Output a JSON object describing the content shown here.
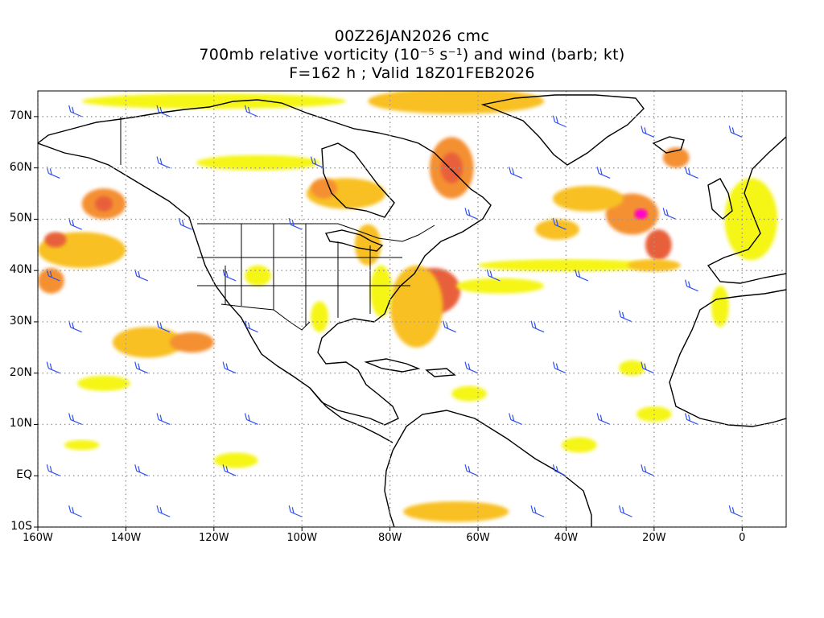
{
  "title": {
    "line1": "00Z26JAN2026 cmc",
    "line2": "700mb relative vorticity (10⁻⁵ s⁻¹) and wind (barb; kt)",
    "line3": "F=162 h ; Valid 18Z01FEB2026"
  },
  "map": {
    "projection": "cylindrical",
    "lon_range": [
      -160,
      10
    ],
    "lat_range": [
      -10,
      75
    ],
    "lat_ticks": [
      {
        "value": 70,
        "label": "70N"
      },
      {
        "value": 60,
        "label": "60N"
      },
      {
        "value": 50,
        "label": "50N"
      },
      {
        "value": 40,
        "label": "40N"
      },
      {
        "value": 30,
        "label": "30N"
      },
      {
        "value": 20,
        "label": "20N"
      },
      {
        "value": 10,
        "label": "10N"
      },
      {
        "value": 0,
        "label": "EQ"
      },
      {
        "value": -10,
        "label": "10S"
      }
    ],
    "lon_ticks": [
      {
        "value": -160,
        "label": "160W"
      },
      {
        "value": -140,
        "label": "140W"
      },
      {
        "value": -120,
        "label": "120W"
      },
      {
        "value": -100,
        "label": "100W"
      },
      {
        "value": -80,
        "label": "80W"
      },
      {
        "value": -60,
        "label": "60W"
      },
      {
        "value": -40,
        "label": "40W"
      },
      {
        "value": -20,
        "label": "20W"
      },
      {
        "value": 0,
        "label": "0"
      }
    ],
    "grid": "dotted",
    "colors": {
      "level1": "#f5f515",
      "level2": "#f8c020",
      "level3": "#f49030",
      "level4": "#e8603a",
      "level5": "#ff00cc",
      "barb": "#3050f0",
      "coast": "#000000",
      "grid": "#999999"
    },
    "vorticity_features": [
      {
        "lon": -65,
        "lat": 73,
        "rx": 20,
        "ry": 2.5,
        "level": 2
      },
      {
        "lon": -120,
        "lat": 73,
        "rx": 30,
        "ry": 1.5,
        "level": 1
      },
      {
        "lon": -66,
        "lat": 60,
        "rx": 5,
        "ry": 6,
        "level": 3
      },
      {
        "lon": -66,
        "lat": 60,
        "rx": 2.5,
        "ry": 3,
        "level": 4
      },
      {
        "lon": -90,
        "lat": 55,
        "rx": 9,
        "ry": 3,
        "level": 2
      },
      {
        "lon": -95,
        "lat": 56,
        "rx": 3,
        "ry": 2,
        "level": 3
      },
      {
        "lon": -110,
        "lat": 61,
        "rx": 14,
        "ry": 1.5,
        "level": 1
      },
      {
        "lon": -145,
        "lat": 53,
        "rx": 5,
        "ry": 3,
        "level": 3
      },
      {
        "lon": -145,
        "lat": 53,
        "rx": 2,
        "ry": 1.5,
        "level": 4
      },
      {
        "lon": -150,
        "lat": 44,
        "rx": 10,
        "ry": 3.5,
        "level": 2
      },
      {
        "lon": -156,
        "lat": 46,
        "rx": 2.5,
        "ry": 1.5,
        "level": 4
      },
      {
        "lon": -157,
        "lat": 38,
        "rx": 3,
        "ry": 2.5,
        "level": 3
      },
      {
        "lon": -135,
        "lat": 26,
        "rx": 8,
        "ry": 3,
        "level": 2
      },
      {
        "lon": -125,
        "lat": 26,
        "rx": 5,
        "ry": 2,
        "level": 3
      },
      {
        "lon": -70,
        "lat": 36,
        "rx": 6,
        "ry": 4.5,
        "level": 4
      },
      {
        "lon": -72,
        "lat": 35,
        "rx": 1.5,
        "ry": 1.2,
        "level": 5
      },
      {
        "lon": -74,
        "lat": 33,
        "rx": 6,
        "ry": 8,
        "level": 2
      },
      {
        "lon": -55,
        "lat": 37,
        "rx": 10,
        "ry": 1.5,
        "level": 1
      },
      {
        "lon": -25,
        "lat": 51,
        "rx": 6,
        "ry": 4,
        "level": 3
      },
      {
        "lon": -23,
        "lat": 51,
        "rx": 1.5,
        "ry": 1,
        "level": 5
      },
      {
        "lon": -19,
        "lat": 45,
        "rx": 3,
        "ry": 3,
        "level": 4
      },
      {
        "lon": -35,
        "lat": 54,
        "rx": 8,
        "ry": 2.5,
        "level": 2
      },
      {
        "lon": -42,
        "lat": 48,
        "rx": 5,
        "ry": 2,
        "level": 2
      },
      {
        "lon": -15,
        "lat": 62,
        "rx": 3,
        "ry": 2,
        "level": 3
      },
      {
        "lon": -40,
        "lat": 41,
        "rx": 20,
        "ry": 1.2,
        "level": 1
      },
      {
        "lon": -20,
        "lat": 41,
        "rx": 6,
        "ry": 1.2,
        "level": 2
      },
      {
        "lon": 2,
        "lat": 50,
        "rx": 6,
        "ry": 8,
        "level": 1
      },
      {
        "lon": -85,
        "lat": 45,
        "rx": 3,
        "ry": 4,
        "level": 2
      },
      {
        "lon": -82,
        "lat": 36,
        "rx": 2.5,
        "ry": 5,
        "level": 1
      },
      {
        "lon": -65,
        "lat": -7,
        "rx": 12,
        "ry": 2,
        "level": 2
      },
      {
        "lon": -145,
        "lat": 18,
        "rx": 6,
        "ry": 1.5,
        "level": 1
      },
      {
        "lon": -110,
        "lat": 39,
        "rx": 3,
        "ry": 2,
        "level": 1
      },
      {
        "lon": -96,
        "lat": 31,
        "rx": 2,
        "ry": 3,
        "level": 1
      },
      {
        "lon": -25,
        "lat": 21,
        "rx": 3,
        "ry": 1.5,
        "level": 1
      },
      {
        "lon": -62,
        "lat": 16,
        "rx": 4,
        "ry": 1.5,
        "level": 1
      },
      {
        "lon": -37,
        "lat": 6,
        "rx": 4,
        "ry": 1.5,
        "level": 1
      },
      {
        "lon": -150,
        "lat": 6,
        "rx": 4,
        "ry": 1,
        "level": 1
      },
      {
        "lon": -115,
        "lat": 3,
        "rx": 5,
        "ry": 1.5,
        "level": 1
      },
      {
        "lon": -20,
        "lat": 12,
        "rx": 4,
        "ry": 1.5,
        "level": 1
      },
      {
        "lon": -5,
        "lat": 33,
        "rx": 2,
        "ry": 4,
        "level": 1
      }
    ],
    "wind_barbs": [
      {
        "lon": -150,
        "lat": 70
      },
      {
        "lon": -130,
        "lat": 70
      },
      {
        "lon": -110,
        "lat": 70
      },
      {
        "lon": -40,
        "lat": 68
      },
      {
        "lon": -20,
        "lat": 66
      },
      {
        "lon": 0,
        "lat": 66
      },
      {
        "lon": -155,
        "lat": 58
      },
      {
        "lon": -130,
        "lat": 60
      },
      {
        "lon": -95,
        "lat": 60
      },
      {
        "lon": -50,
        "lat": 58
      },
      {
        "lon": -30,
        "lat": 58
      },
      {
        "lon": -10,
        "lat": 58
      },
      {
        "lon": -150,
        "lat": 48
      },
      {
        "lon": -125,
        "lat": 48
      },
      {
        "lon": -100,
        "lat": 48
      },
      {
        "lon": -60,
        "lat": 50
      },
      {
        "lon": -40,
        "lat": 48
      },
      {
        "lon": -15,
        "lat": 50
      },
      {
        "lon": -155,
        "lat": 38
      },
      {
        "lon": -135,
        "lat": 38
      },
      {
        "lon": -115,
        "lat": 38
      },
      {
        "lon": -55,
        "lat": 38
      },
      {
        "lon": -35,
        "lat": 38
      },
      {
        "lon": -10,
        "lat": 36
      },
      {
        "lon": -150,
        "lat": 28
      },
      {
        "lon": -130,
        "lat": 28
      },
      {
        "lon": -110,
        "lat": 28
      },
      {
        "lon": -65,
        "lat": 28
      },
      {
        "lon": -45,
        "lat": 28
      },
      {
        "lon": -25,
        "lat": 30
      },
      {
        "lon": -155,
        "lat": 20
      },
      {
        "lon": -135,
        "lat": 20
      },
      {
        "lon": -115,
        "lat": 20
      },
      {
        "lon": -60,
        "lat": 20
      },
      {
        "lon": -40,
        "lat": 20
      },
      {
        "lon": -20,
        "lat": 20
      },
      {
        "lon": -150,
        "lat": 10
      },
      {
        "lon": -130,
        "lat": 10
      },
      {
        "lon": -110,
        "lat": 10
      },
      {
        "lon": -50,
        "lat": 10
      },
      {
        "lon": -30,
        "lat": 10
      },
      {
        "lon": -10,
        "lat": 10
      },
      {
        "lon": -155,
        "lat": 0
      },
      {
        "lon": -135,
        "lat": 0
      },
      {
        "lon": -115,
        "lat": 0
      },
      {
        "lon": -60,
        "lat": 0
      },
      {
        "lon": -40,
        "lat": 0
      },
      {
        "lon": -20,
        "lat": 0
      },
      {
        "lon": -150,
        "lat": -8
      },
      {
        "lon": -130,
        "lat": -8
      },
      {
        "lon": -100,
        "lat": -8
      },
      {
        "lon": -45,
        "lat": -8
      },
      {
        "lon": -25,
        "lat": -8
      },
      {
        "lon": 0,
        "lat": -8
      }
    ]
  }
}
